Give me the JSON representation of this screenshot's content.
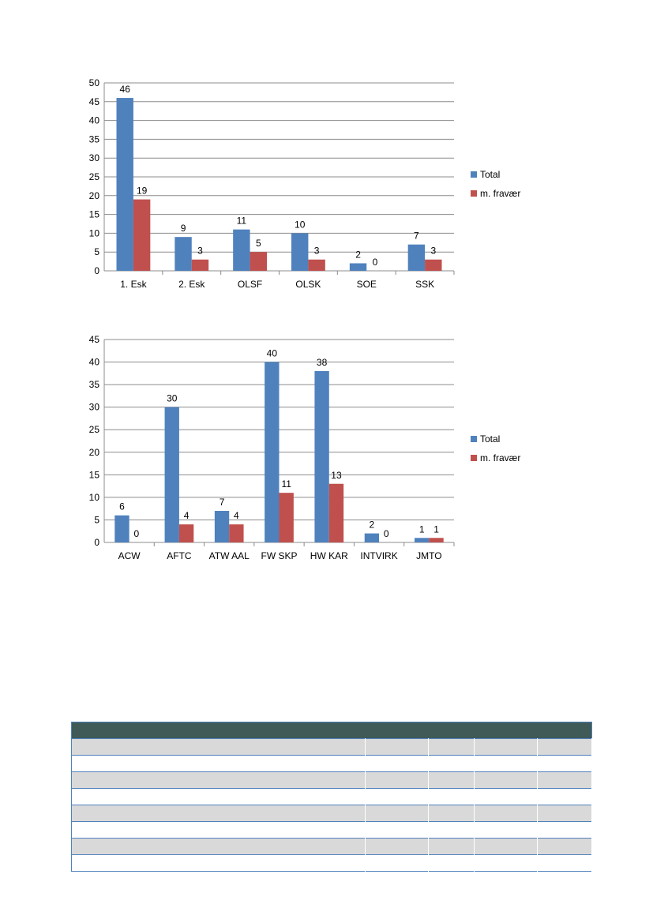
{
  "chart_data": [
    {
      "type": "bar",
      "categories": [
        "1. Esk",
        "2. Esk",
        "OLSF",
        "OLSK",
        "SOE",
        "SSK"
      ],
      "series": [
        {
          "name": "Total",
          "values": [
            46,
            9,
            11,
            10,
            2,
            7
          ],
          "color": "#4f81bd"
        },
        {
          "name": "m. fravær",
          "values": [
            19,
            3,
            5,
            3,
            0,
            3
          ],
          "color": "#c0504d"
        }
      ],
      "ylim": [
        0,
        50
      ],
      "ytick_step": 5,
      "grid": true,
      "legend": "right"
    },
    {
      "type": "bar",
      "categories": [
        "ACW",
        "AFTC",
        "ATW AAL",
        "FW SKP",
        "HW KAR",
        "INTVIRK",
        "JMTO"
      ],
      "series": [
        {
          "name": "Total",
          "values": [
            6,
            30,
            7,
            40,
            38,
            2,
            1
          ],
          "color": "#4f81bd"
        },
        {
          "name": "m. fravær",
          "values": [
            0,
            4,
            4,
            11,
            13,
            0,
            1
          ],
          "color": "#c0504d"
        }
      ],
      "ylim": [
        0,
        45
      ],
      "ytick_step": 5,
      "grid": true,
      "legend": "right"
    }
  ],
  "table": {
    "columns": 5,
    "row_count": 8,
    "header_color": "#3f5a57",
    "stripe_color": "#d9d9d9"
  }
}
